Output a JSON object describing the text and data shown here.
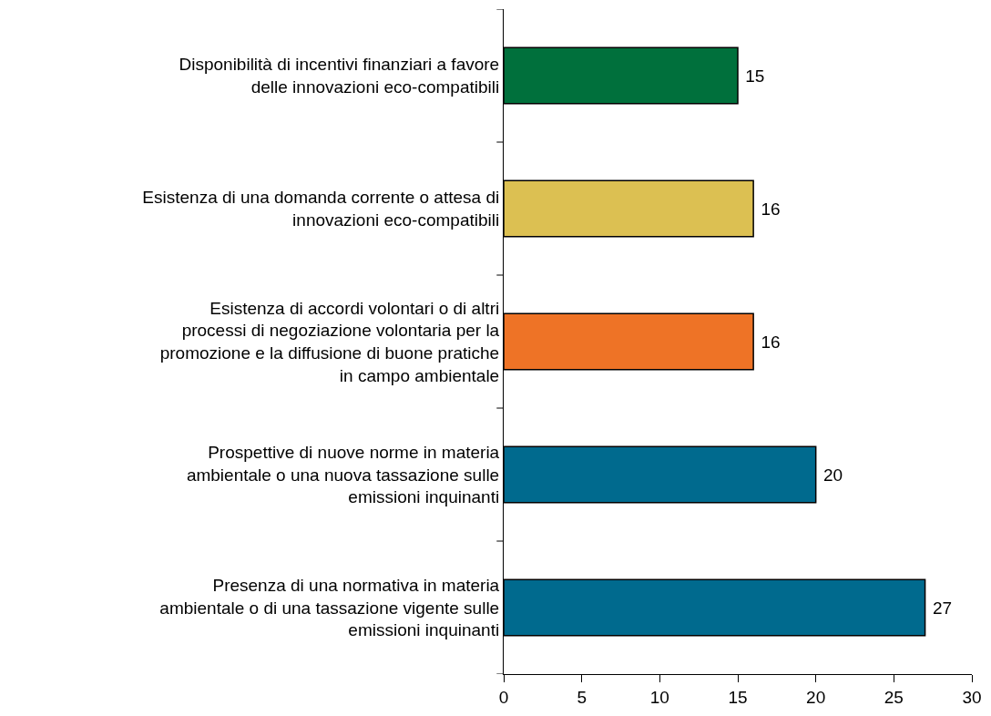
{
  "chart_data": {
    "type": "bar",
    "orientation": "horizontal",
    "categories": [
      "Disponibilità di incentivi finanziari a favore delle innovazioni eco-compatibili",
      "Esistenza di una domanda corrente o attesa di innovazioni eco-compatibili",
      "Esistenza di accordi volontari o di altri processi di negoziazione volontaria per la promozione e la diffusione di buone pratiche in campo ambientale",
      "Prospettive di nuove norme in materia ambientale o una nuova tassazione sulle emissioni inquinanti",
      "Presenza di una normativa in materia ambientale o di una tassazione vigente sulle emissioni inquinanti"
    ],
    "values": [
      15,
      16,
      16,
      20,
      27
    ],
    "colors": [
      "#00703c",
      "#dcc052",
      "#ee7326",
      "#006a8e",
      "#006a8e"
    ],
    "xlim": [
      0,
      30
    ],
    "xticks": [
      0,
      5,
      10,
      15,
      20,
      25,
      30
    ],
    "data_labels": true
  }
}
